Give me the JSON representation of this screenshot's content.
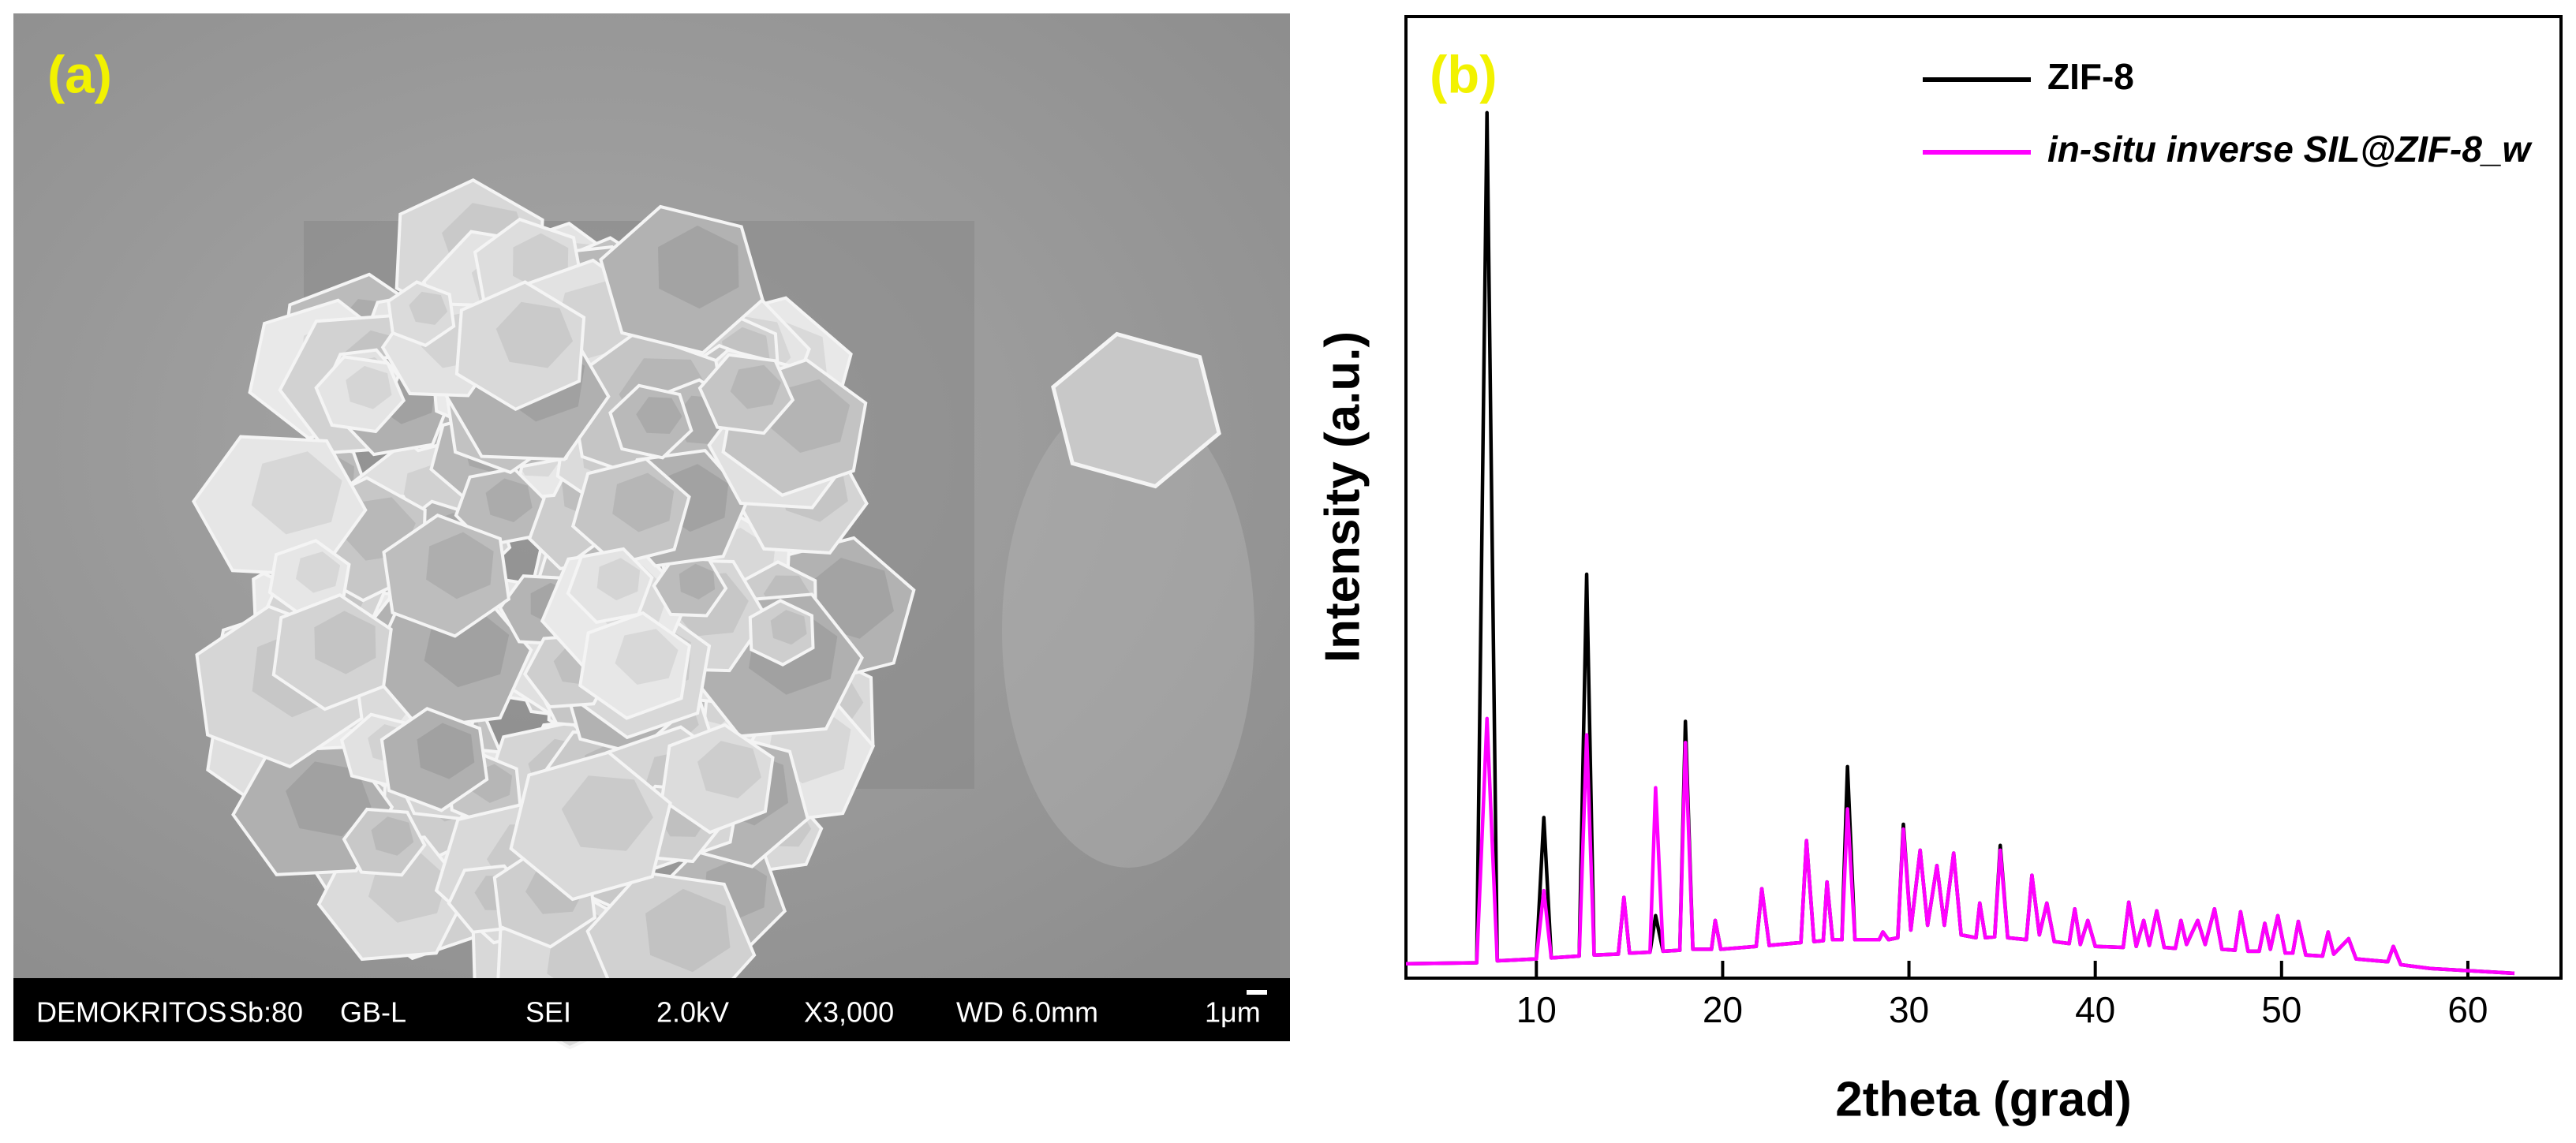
{
  "image_panel": {
    "label": "(a)",
    "info_bar": [
      "DEMOKRITOS",
      "Sb:80",
      "GB-L",
      "SEI",
      "2.0kV",
      "X3,000",
      "WD 6.0mm",
      "1μm"
    ]
  },
  "chart_data": {
    "type": "line",
    "label": "(b)",
    "x_label": "2theta (grad)",
    "y_label": "Intensity (a.u.)",
    "xlim": [
      3,
      65
    ],
    "xticks": [
      10,
      20,
      30,
      40,
      50,
      60
    ],
    "ylim": [
      0,
      100
    ],
    "legend": "upper-right",
    "x": [
      3,
      6.8,
      7.35,
      7.9,
      10.0,
      10.4,
      10.8,
      12.3,
      12.7,
      13.1,
      14.4,
      14.7,
      15.0,
      16.1,
      16.4,
      16.8,
      17.7,
      18.0,
      18.4,
      19.4,
      19.6,
      19.9,
      21.8,
      22.1,
      22.5,
      24.2,
      24.5,
      24.9,
      25.4,
      25.6,
      25.9,
      26.4,
      26.7,
      27.1,
      28.4,
      28.6,
      28.9,
      29.4,
      29.7,
      30.1,
      30.6,
      31.0,
      31.5,
      31.9,
      32.4,
      32.8,
      33.6,
      33.8,
      34.1,
      34.6,
      34.9,
      35.3,
      36.3,
      36.6,
      37.0,
      37.4,
      37.8,
      38.6,
      38.9,
      39.2,
      39.6,
      40.0,
      41.5,
      41.8,
      42.2,
      42.6,
      42.9,
      43.3,
      43.7,
      44.3,
      44.6,
      44.9,
      45.5,
      45.9,
      46.4,
      46.8,
      47.5,
      47.8,
      48.2,
      48.8,
      49.1,
      49.4,
      49.8,
      50.2,
      50.6,
      50.9,
      51.3,
      52.2,
      52.5,
      52.8,
      53.6,
      54.0,
      55.7,
      56.0,
      56.4,
      58,
      62.5
    ],
    "series": [
      {
        "name": "ZIF-8",
        "color": "#000000",
        "values": [
          1.5,
          1.6,
          90,
          1.8,
          2,
          16.7,
          2.1,
          2.3,
          42,
          2.4,
          2.5,
          8.4,
          2.6,
          2.7,
          6.5,
          2.8,
          2.9,
          26.7,
          3,
          3,
          6,
          3,
          3.3,
          9.3,
          3.4,
          3.7,
          14.3,
          3.8,
          3.9,
          10,
          4,
          4,
          22,
          4,
          4,
          4.8,
          4,
          4.2,
          16,
          5,
          13.3,
          5.5,
          11.7,
          5.5,
          13,
          4.5,
          4.2,
          7.8,
          4.2,
          4.3,
          13.8,
          4.2,
          4,
          10.7,
          4.5,
          7.8,
          3.8,
          3.6,
          7.2,
          3.5,
          6,
          3.3,
          3.2,
          7.9,
          3.3,
          6,
          3.4,
          7,
          3.2,
          3.1,
          6,
          3.5,
          6,
          3.5,
          7.2,
          3,
          2.9,
          6.9,
          2.8,
          2.8,
          5.7,
          3,
          6.5,
          2.6,
          2.6,
          5.9,
          2.4,
          2.3,
          4.8,
          2.5,
          4.1,
          2,
          1.7,
          3.3,
          1.4,
          1,
          0.5
        ]
      },
      {
        "name": "in-situ inverse SIL@ZIF-8_w",
        "color": "#ff00ff",
        "values": [
          1.5,
          1.6,
          27,
          1.8,
          2,
          9.1,
          2.1,
          2.3,
          25.3,
          2.4,
          2.5,
          8.4,
          2.6,
          2.7,
          19.8,
          2.8,
          2.9,
          24.5,
          3,
          3,
          6,
          3,
          3.3,
          9.3,
          3.4,
          3.7,
          14.3,
          3.8,
          3.9,
          10,
          4,
          4,
          17.6,
          4,
          4,
          4.8,
          4,
          4.2,
          15.5,
          5,
          13.3,
          5.5,
          11.7,
          5.5,
          13,
          4.5,
          4.2,
          7.8,
          4.2,
          4.3,
          13.3,
          4.2,
          4,
          10.7,
          4.5,
          7.8,
          3.8,
          3.6,
          7.2,
          3.5,
          6,
          3.3,
          3.2,
          7.9,
          3.3,
          6,
          3.4,
          7,
          3.2,
          3.1,
          6,
          3.5,
          6,
          3.5,
          7.2,
          3,
          2.9,
          6.9,
          2.8,
          2.8,
          5.7,
          3,
          6.5,
          2.6,
          2.6,
          5.9,
          2.4,
          2.3,
          4.8,
          2.5,
          4.1,
          2,
          1.7,
          3.3,
          1.4,
          1,
          0.5
        ]
      }
    ]
  }
}
